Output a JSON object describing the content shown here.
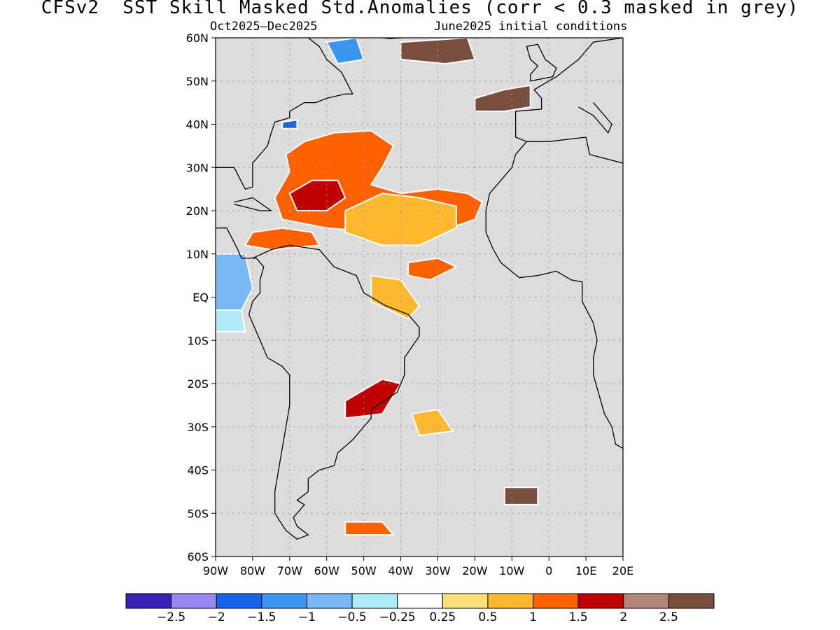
{
  "title": "CFSv2  SST Skill Masked Std.Anomalies (corr < 0.3 masked in grey)",
  "subtitle_left": "Oct2025–Dec2025",
  "subtitle_right": "June2025 initial conditions",
  "map": {
    "lon_range": [
      -90,
      20
    ],
    "lat_range": [
      -60,
      60
    ],
    "lat_ticks": [
      {
        "value": 60,
        "label": "60N"
      },
      {
        "value": 50,
        "label": "50N"
      },
      {
        "value": 40,
        "label": "40N"
      },
      {
        "value": 30,
        "label": "30N"
      },
      {
        "value": 20,
        "label": "20N"
      },
      {
        "value": 10,
        "label": "10N"
      },
      {
        "value": 0,
        "label": "EQ"
      },
      {
        "value": -10,
        "label": "10S"
      },
      {
        "value": -20,
        "label": "20S"
      },
      {
        "value": -30,
        "label": "30S"
      },
      {
        "value": -40,
        "label": "40S"
      },
      {
        "value": -50,
        "label": "50S"
      },
      {
        "value": -60,
        "label": "60S"
      }
    ],
    "lon_ticks": [
      {
        "value": -90,
        "label": "90W"
      },
      {
        "value": -80,
        "label": "80W"
      },
      {
        "value": -70,
        "label": "70W"
      },
      {
        "value": -60,
        "label": "60W"
      },
      {
        "value": -50,
        "label": "50W"
      },
      {
        "value": -40,
        "label": "40W"
      },
      {
        "value": -30,
        "label": "30W"
      },
      {
        "value": -20,
        "label": "20W"
      },
      {
        "value": -10,
        "label": "10W"
      },
      {
        "value": 0,
        "label": "0"
      },
      {
        "value": 10,
        "label": "10E"
      },
      {
        "value": 20,
        "label": "20E"
      }
    ],
    "mask_color": "#dcdcdc",
    "gridlines": "dotted",
    "anomaly_regions": [
      {
        "name": "subtropical-north-atlantic-warm",
        "category": 1.0,
        "color": "#ff6000",
        "poly": [
          [
            -71,
            33
          ],
          [
            -66,
            36
          ],
          [
            -58,
            38
          ],
          [
            -48,
            38.5
          ],
          [
            -42,
            35
          ],
          [
            -45,
            30
          ],
          [
            -48,
            26
          ],
          [
            -40,
            24
          ],
          [
            -30,
            25
          ],
          [
            -22,
            24
          ],
          [
            -18,
            22
          ],
          [
            -20,
            18
          ],
          [
            -30,
            15
          ],
          [
            -45,
            15
          ],
          [
            -60,
            16
          ],
          [
            -72,
            18
          ],
          [
            -74,
            23
          ],
          [
            -70,
            29
          ]
        ]
      },
      {
        "name": "subtropical-north-atlantic-strong",
        "category": 2.0,
        "color": "#c00000",
        "poly": [
          [
            -70,
            24
          ],
          [
            -64,
            27
          ],
          [
            -57,
            27
          ],
          [
            -55,
            23
          ],
          [
            -60,
            20
          ],
          [
            -68,
            20
          ]
        ]
      },
      {
        "name": "tropical-north-atlantic-moderate",
        "category": 0.5,
        "color": "#ffb830",
        "poly": [
          [
            -55,
            20
          ],
          [
            -45,
            24
          ],
          [
            -35,
            23
          ],
          [
            -25,
            21
          ],
          [
            -25,
            16
          ],
          [
            -35,
            12
          ],
          [
            -45,
            12
          ],
          [
            -55,
            15
          ]
        ]
      },
      {
        "name": "gulf-stream-cool-patch",
        "category": -1.5,
        "color": "#1864e8",
        "poly": [
          [
            -72,
            40.5
          ],
          [
            -68,
            41
          ],
          [
            -68,
            39
          ],
          [
            -72,
            39
          ]
        ]
      },
      {
        "name": "north-atlantic-subpolar-warm",
        "category": 2.5,
        "color": "#7a4e3e",
        "poly": [
          [
            -40,
            59
          ],
          [
            -22,
            60
          ],
          [
            -20,
            55
          ],
          [
            -28,
            54
          ],
          [
            -40,
            55
          ]
        ]
      },
      {
        "name": "iberia-warm",
        "category": 2.5,
        "color": "#7a4e3e",
        "poly": [
          [
            -20,
            46
          ],
          [
            -12,
            48
          ],
          [
            -5,
            49
          ],
          [
            -5,
            44
          ],
          [
            -12,
            43
          ],
          [
            -20,
            43
          ]
        ]
      },
      {
        "name": "labrador-cool",
        "category": -1.0,
        "color": "#3c96f0",
        "poly": [
          [
            -60,
            59
          ],
          [
            -52,
            60
          ],
          [
            -50,
            55
          ],
          [
            -57,
            54
          ]
        ]
      },
      {
        "name": "caribbean-warm",
        "category": 1.0,
        "color": "#ff6000",
        "poly": [
          [
            -80,
            15
          ],
          [
            -72,
            16
          ],
          [
            -64,
            15
          ],
          [
            -62,
            12
          ],
          [
            -75,
            11
          ],
          [
            -82,
            12
          ]
        ]
      },
      {
        "name": "pacific-cool",
        "category": -1.0,
        "color": "#7ab8f5",
        "poly": [
          [
            -90,
            10
          ],
          [
            -82,
            10
          ],
          [
            -80,
            2
          ],
          [
            -83,
            -3
          ],
          [
            -90,
            -3
          ]
        ]
      },
      {
        "name": "pacific-cool-light",
        "category": -0.5,
        "color": "#aeeaf8",
        "poly": [
          [
            -90,
            -3
          ],
          [
            -83,
            -3
          ],
          [
            -82,
            -8
          ],
          [
            -90,
            -8
          ]
        ]
      },
      {
        "name": "brazil-current-warm",
        "category": 1.5,
        "color": "#c00000",
        "poly": [
          [
            -55,
            -24
          ],
          [
            -45,
            -19
          ],
          [
            -40,
            -20
          ],
          [
            -45,
            -27
          ],
          [
            -55,
            -28
          ]
        ]
      },
      {
        "name": "south-atlantic-warm",
        "category": 0.5,
        "color": "#ffb830",
        "poly": [
          [
            -37,
            -27
          ],
          [
            -30,
            -26
          ],
          [
            -26,
            -31
          ],
          [
            -35,
            -32
          ]
        ]
      },
      {
        "name": "southern-ocean-warm",
        "category": 2.5,
        "color": "#7a4e3e",
        "poly": [
          [
            -12,
            -44
          ],
          [
            -3,
            -44
          ],
          [
            -3,
            -48
          ],
          [
            -12,
            -48
          ]
        ]
      },
      {
        "name": "southern-ocean-warm-2",
        "category": 1.0,
        "color": "#ff6000",
        "poly": [
          [
            -55,
            -52
          ],
          [
            -45,
            -52
          ],
          [
            -42,
            -55
          ],
          [
            -55,
            -55
          ]
        ]
      },
      {
        "name": "guinea-warm",
        "category": 1.5,
        "color": "#ff6000",
        "poly": [
          [
            -38,
            8
          ],
          [
            -30,
            9
          ],
          [
            -25,
            7
          ],
          [
            -32,
            4
          ],
          [
            -38,
            5
          ]
        ]
      },
      {
        "name": "amazon-plume-warm",
        "category": 0.5,
        "color": "#ffb830",
        "poly": [
          [
            -48,
            5
          ],
          [
            -40,
            4
          ],
          [
            -35,
            -2
          ],
          [
            -38,
            -5
          ],
          [
            -48,
            -1
          ]
        ]
      }
    ],
    "coastlines": [
      {
        "name": "north-america-coast",
        "line": [
          [
            -90,
            30
          ],
          [
            -85,
            30
          ],
          [
            -82,
            25
          ],
          [
            -80,
            25.5
          ],
          [
            -80,
            31
          ],
          [
            -76,
            35
          ],
          [
            -75,
            38
          ],
          [
            -74,
            40.5
          ],
          [
            -70,
            41.5
          ],
          [
            -70,
            43
          ],
          [
            -66,
            45
          ],
          [
            -63,
            45
          ],
          [
            -60,
            46
          ],
          [
            -55,
            47
          ],
          [
            -53,
            47
          ],
          [
            -56,
            52
          ],
          [
            -60,
            55
          ],
          [
            -62,
            58
          ],
          [
            -65,
            60
          ]
        ]
      },
      {
        "name": "greenland-coast",
        "line": [
          [
            -45,
            60
          ],
          [
            -43,
            59.8
          ],
          [
            -40,
            60
          ]
        ]
      },
      {
        "name": "cuba-coast",
        "line": [
          [
            -85,
            22
          ],
          [
            -80,
            23
          ],
          [
            -75,
            20
          ],
          [
            -78,
            20
          ],
          [
            -85,
            21.5
          ]
        ]
      },
      {
        "name": "central-america-coast",
        "line": [
          [
            -90,
            16
          ],
          [
            -87,
            16
          ],
          [
            -84,
            11
          ],
          [
            -83,
            9
          ],
          [
            -80,
            9
          ]
        ]
      },
      {
        "name": "south-america-coast",
        "line": [
          [
            -80,
            9
          ],
          [
            -75,
            11
          ],
          [
            -70,
            12
          ],
          [
            -62,
            11
          ],
          [
            -58,
            7
          ],
          [
            -52,
            5
          ],
          [
            -50,
            1
          ],
          [
            -44,
            -2
          ],
          [
            -38,
            -4
          ],
          [
            -35,
            -7
          ],
          [
            -35,
            -9
          ],
          [
            -39,
            -14
          ],
          [
            -39,
            -18
          ],
          [
            -41,
            -22
          ],
          [
            -48,
            -26
          ],
          [
            -48,
            -28
          ],
          [
            -53,
            -33
          ],
          [
            -57,
            -36
          ],
          [
            -58,
            -39
          ],
          [
            -62,
            -40
          ],
          [
            -65,
            -42
          ],
          [
            -65,
            -45
          ],
          [
            -68,
            -47
          ],
          [
            -66,
            -48
          ],
          [
            -69,
            -51
          ],
          [
            -68,
            -53
          ],
          [
            -65,
            -55
          ],
          [
            -68,
            -56
          ],
          [
            -71,
            -54
          ],
          [
            -74,
            -50
          ],
          [
            -74,
            -45
          ],
          [
            -73,
            -40
          ],
          [
            -72,
            -35
          ],
          [
            -71,
            -30
          ],
          [
            -70,
            -25
          ],
          [
            -70,
            -18
          ],
          [
            -72,
            -16
          ],
          [
            -76,
            -14
          ],
          [
            -78,
            -10
          ],
          [
            -80,
            -6
          ],
          [
            -81,
            -4
          ],
          [
            -80,
            -1
          ],
          [
            -78,
            1
          ],
          [
            -78,
            4
          ],
          [
            -77,
            7
          ],
          [
            -79,
            9
          ],
          [
            -80,
            9
          ]
        ]
      },
      {
        "name": "africa-coast",
        "line": [
          [
            -6,
            36
          ],
          [
            -9,
            33
          ],
          [
            -10,
            30
          ],
          [
            -16,
            24
          ],
          [
            -17,
            20
          ],
          [
            -17,
            15
          ],
          [
            -15,
            11
          ],
          [
            -13,
            8
          ],
          [
            -8,
            4.5
          ],
          [
            -3,
            5
          ],
          [
            2,
            6
          ],
          [
            6,
            4
          ],
          [
            9,
            3.5
          ],
          [
            9,
            -1
          ],
          [
            12,
            -6
          ],
          [
            13,
            -10
          ],
          [
            12,
            -14
          ],
          [
            12,
            -18
          ],
          [
            15,
            -27
          ],
          [
            17,
            -30
          ],
          [
            18,
            -34
          ],
          [
            20,
            -35
          ]
        ]
      },
      {
        "name": "europe-coast",
        "line": [
          [
            -6,
            36
          ],
          [
            -9,
            37
          ],
          [
            -9,
            43
          ],
          [
            -2,
            43.5
          ],
          [
            -2,
            46
          ],
          [
            -4,
            48
          ],
          [
            2,
            51
          ],
          [
            5,
            53
          ],
          [
            8,
            55
          ],
          [
            10,
            57
          ],
          [
            12,
            59
          ],
          [
            20,
            60
          ]
        ]
      },
      {
        "name": "britain-coast",
        "line": [
          [
            -5,
            50
          ],
          [
            1,
            51
          ],
          [
            2,
            53
          ],
          [
            -1,
            55
          ],
          [
            -3,
            58.5
          ],
          [
            -6,
            58
          ],
          [
            -5,
            55
          ],
          [
            -3,
            53.5
          ],
          [
            -5,
            51.5
          ],
          [
            -5,
            50
          ]
        ]
      },
      {
        "name": "mediterranean-coast",
        "line": [
          [
            -6,
            36
          ],
          [
            0,
            36
          ],
          [
            10,
            37
          ],
          [
            11,
            33
          ],
          [
            20,
            31
          ]
        ]
      },
      {
        "name": "italy-coast",
        "line": [
          [
            8,
            44
          ],
          [
            12,
            42
          ],
          [
            16,
            38
          ],
          [
            17,
            40
          ],
          [
            13,
            44
          ],
          [
            12,
            45
          ]
        ]
      }
    ]
  },
  "colorbar": {
    "colors": [
      "#3a22b8",
      "#9a86f0",
      "#1864e8",
      "#3c96f0",
      "#7ab8f5",
      "#aeeaf8",
      "#ffffff",
      "#ffe078",
      "#ffb830",
      "#ff6000",
      "#c00000",
      "#b08678",
      "#7a4e3e"
    ],
    "labels": [
      "−2.5",
      "−2",
      "−1.5",
      "−1",
      "−0.5",
      "−0.25",
      "0.25",
      "0.5",
      "1",
      "1.5",
      "2",
      "2.5"
    ]
  }
}
